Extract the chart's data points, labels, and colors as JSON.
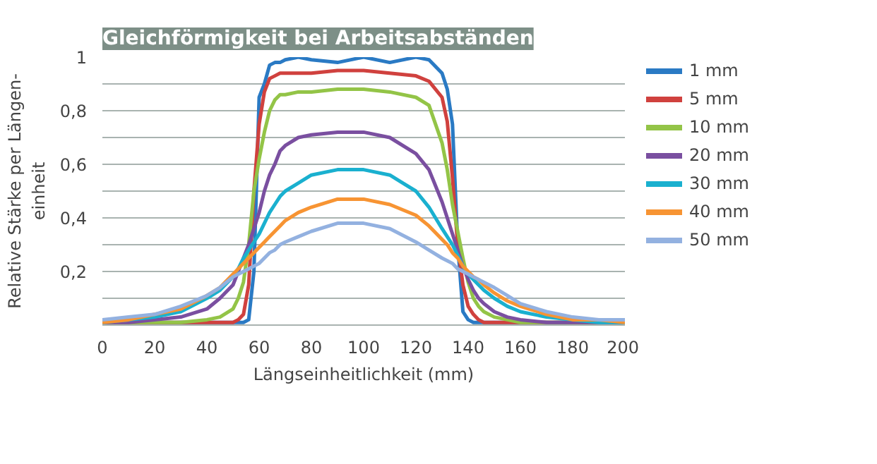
{
  "chart_data": {
    "type": "line",
    "title": "Gleichförmigkeit bei Arbeitsabständen",
    "xlabel": "Längseinheitlichkeit (mm)",
    "ylabel": "Relative Stärke per Längen-\neinheit",
    "x": [
      0,
      10,
      20,
      30,
      40,
      45,
      50,
      52,
      54,
      56,
      58,
      60,
      62,
      64,
      66,
      68,
      70,
      75,
      80,
      90,
      100,
      110,
      120,
      125,
      130,
      132,
      134,
      136,
      138,
      140,
      142,
      144,
      146,
      150,
      155,
      160,
      170,
      180,
      190,
      200
    ],
    "series": [
      {
        "name": "1 mm",
        "color": "#2a7ac4",
        "values": [
          0.01,
          0.01,
          0.01,
          0.01,
          0.01,
          0.01,
          0.01,
          0.01,
          0.01,
          0.02,
          0.2,
          0.85,
          0.9,
          0.97,
          0.98,
          0.98,
          0.99,
          1.0,
          0.99,
          0.98,
          1.0,
          0.98,
          1.0,
          0.99,
          0.94,
          0.88,
          0.75,
          0.3,
          0.05,
          0.02,
          0.01,
          0.01,
          0.01,
          0.01,
          0.01,
          0.01,
          0.01,
          0.01,
          0.01,
          0.01
        ]
      },
      {
        "name": "5 mm",
        "color": "#d0413e",
        "values": [
          0.01,
          0.01,
          0.01,
          0.01,
          0.01,
          0.01,
          0.01,
          0.02,
          0.04,
          0.15,
          0.5,
          0.75,
          0.87,
          0.92,
          0.93,
          0.94,
          0.94,
          0.94,
          0.94,
          0.95,
          0.95,
          0.94,
          0.93,
          0.91,
          0.85,
          0.76,
          0.55,
          0.3,
          0.15,
          0.07,
          0.04,
          0.02,
          0.01,
          0.01,
          0.01,
          0.01,
          0.01,
          0.01,
          0.01,
          0.01
        ]
      },
      {
        "name": "10 mm",
        "color": "#93c447",
        "values": [
          0.01,
          0.01,
          0.01,
          0.01,
          0.02,
          0.03,
          0.06,
          0.1,
          0.16,
          0.3,
          0.5,
          0.62,
          0.72,
          0.8,
          0.84,
          0.86,
          0.86,
          0.87,
          0.87,
          0.88,
          0.88,
          0.87,
          0.85,
          0.82,
          0.68,
          0.58,
          0.45,
          0.35,
          0.25,
          0.16,
          0.1,
          0.07,
          0.05,
          0.03,
          0.02,
          0.01,
          0.01,
          0.01,
          0.01,
          0.01
        ]
      },
      {
        "name": "20 mm",
        "color": "#7a4fa0",
        "values": [
          0.01,
          0.01,
          0.02,
          0.03,
          0.06,
          0.1,
          0.15,
          0.2,
          0.25,
          0.3,
          0.36,
          0.42,
          0.5,
          0.56,
          0.6,
          0.65,
          0.67,
          0.7,
          0.71,
          0.72,
          0.72,
          0.7,
          0.64,
          0.58,
          0.46,
          0.4,
          0.34,
          0.28,
          0.22,
          0.17,
          0.13,
          0.1,
          0.08,
          0.05,
          0.03,
          0.02,
          0.01,
          0.01,
          0.01,
          0.01
        ]
      },
      {
        "name": "30 mm",
        "color": "#1ab0cf",
        "values": [
          0.01,
          0.02,
          0.03,
          0.05,
          0.1,
          0.13,
          0.18,
          0.21,
          0.25,
          0.28,
          0.31,
          0.34,
          0.38,
          0.42,
          0.45,
          0.48,
          0.5,
          0.53,
          0.56,
          0.58,
          0.58,
          0.56,
          0.5,
          0.44,
          0.36,
          0.33,
          0.3,
          0.26,
          0.22,
          0.19,
          0.17,
          0.15,
          0.13,
          0.1,
          0.07,
          0.05,
          0.03,
          0.02,
          0.01,
          0.01
        ]
      },
      {
        "name": "40 mm",
        "color": "#f79433",
        "values": [
          0.01,
          0.02,
          0.04,
          0.06,
          0.11,
          0.14,
          0.19,
          0.21,
          0.23,
          0.25,
          0.27,
          0.29,
          0.31,
          0.33,
          0.35,
          0.37,
          0.39,
          0.42,
          0.44,
          0.47,
          0.47,
          0.45,
          0.41,
          0.37,
          0.32,
          0.3,
          0.27,
          0.25,
          0.22,
          0.2,
          0.18,
          0.17,
          0.15,
          0.12,
          0.09,
          0.07,
          0.04,
          0.02,
          0.02,
          0.01
        ]
      },
      {
        "name": "50 mm",
        "color": "#93b1e0",
        "values": [
          0.02,
          0.03,
          0.04,
          0.07,
          0.11,
          0.14,
          0.18,
          0.19,
          0.2,
          0.21,
          0.22,
          0.23,
          0.25,
          0.27,
          0.28,
          0.3,
          0.31,
          0.33,
          0.35,
          0.38,
          0.38,
          0.36,
          0.31,
          0.28,
          0.25,
          0.24,
          0.23,
          0.21,
          0.2,
          0.19,
          0.18,
          0.17,
          0.16,
          0.14,
          0.11,
          0.08,
          0.05,
          0.03,
          0.02,
          0.02
        ]
      }
    ],
    "xlim": [
      0,
      200
    ],
    "ylim": [
      0,
      1
    ],
    "xticks": [
      0,
      20,
      40,
      60,
      80,
      100,
      120,
      140,
      160,
      180,
      200
    ],
    "yticks": [
      {
        "value": 0.1,
        "label": null
      },
      {
        "value": 0.2,
        "label": "0,2"
      },
      {
        "value": 0.3,
        "label": null
      },
      {
        "value": 0.4,
        "label": "0,4"
      },
      {
        "value": 0.5,
        "label": null
      },
      {
        "value": 0.6,
        "label": "0,6"
      },
      {
        "value": 0.7,
        "label": null
      },
      {
        "value": 0.8,
        "label": "0,8"
      },
      {
        "value": 0.9,
        "label": null
      },
      {
        "value": 1,
        "label": "1"
      }
    ],
    "grid": "y",
    "legend": "right",
    "line_style": "solid"
  }
}
